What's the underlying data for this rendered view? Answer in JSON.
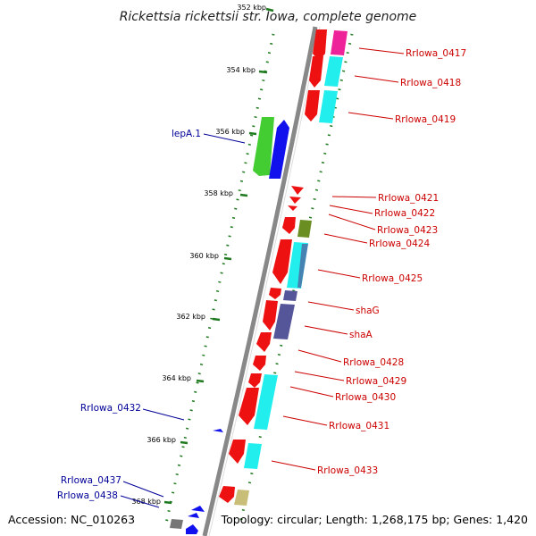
{
  "title": "Rickettsia rickettsii str. Iowa, complete genome",
  "accession": "Accession: NC_010263",
  "topology": "Topology: circular; Length: 1,268,175 bp; Genes: 1,420",
  "colors": {
    "backbone": "#888888",
    "tick": "#1f7a1f",
    "right_label": "#cc0000",
    "left_label": "#000099",
    "red": "#ee1111",
    "cyan": "#22eeee",
    "magenta": "#ee2299",
    "green": "#44cc33",
    "blue": "#1111ee",
    "olive": "#6b8e23",
    "slate": "#55559a",
    "khaki": "#c8be78",
    "gray": "#777777"
  },
  "ticks": [
    "352 kbp",
    "354 kbp",
    "356 kbp",
    "358 kbp",
    "360 kbp",
    "362 kbp",
    "364 kbp",
    "366 kbp",
    "368 kbp"
  ],
  "right_labels": [
    "RrIowa_0417",
    "RrIowa_0418",
    "RrIowa_0419",
    "RrIowa_0421",
    "RrIowa_0422",
    "RrIowa_0423",
    "RrIowa_0424",
    "RrIowa_0425",
    "shaG",
    "shaA",
    "RrIowa_0428",
    "RrIowa_0429",
    "RrIowa_0430",
    "RrIowa_0431",
    "RrIowa_0433"
  ],
  "left_labels": [
    "lepA.1",
    "RrIowa_0432",
    "RrIowa_0437",
    "RrIowa_0438"
  ]
}
